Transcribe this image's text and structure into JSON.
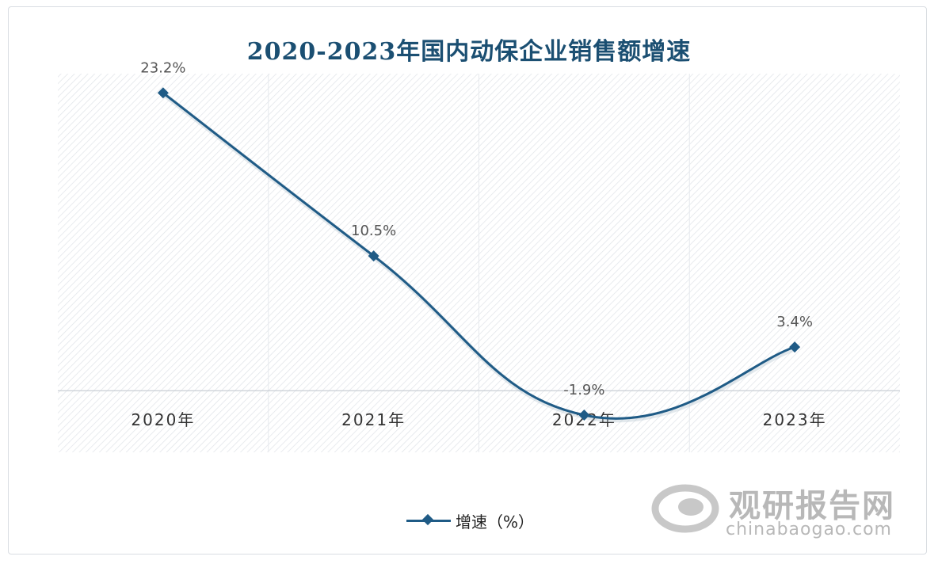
{
  "chart_data": {
    "type": "line",
    "title": "2020-2023年国内动保企业销售额增速",
    "categories": [
      "2020年",
      "2021年",
      "2022年",
      "2023年"
    ],
    "series": [
      {
        "name": "增速（%）",
        "values": [
          23.2,
          10.5,
          -1.9,
          3.4
        ],
        "labels": [
          "23.2%",
          "10.5%",
          "-1.9%",
          "3.4%"
        ],
        "color": "#1f5b86",
        "marker": "diamond",
        "smooth": true
      }
    ],
    "ylim": [
      -4.8,
      24.7
    ],
    "legend": "bottom",
    "grid": false
  },
  "watermark": {
    "name_cn": "观研报告网",
    "site": "chinabaogao.com"
  }
}
